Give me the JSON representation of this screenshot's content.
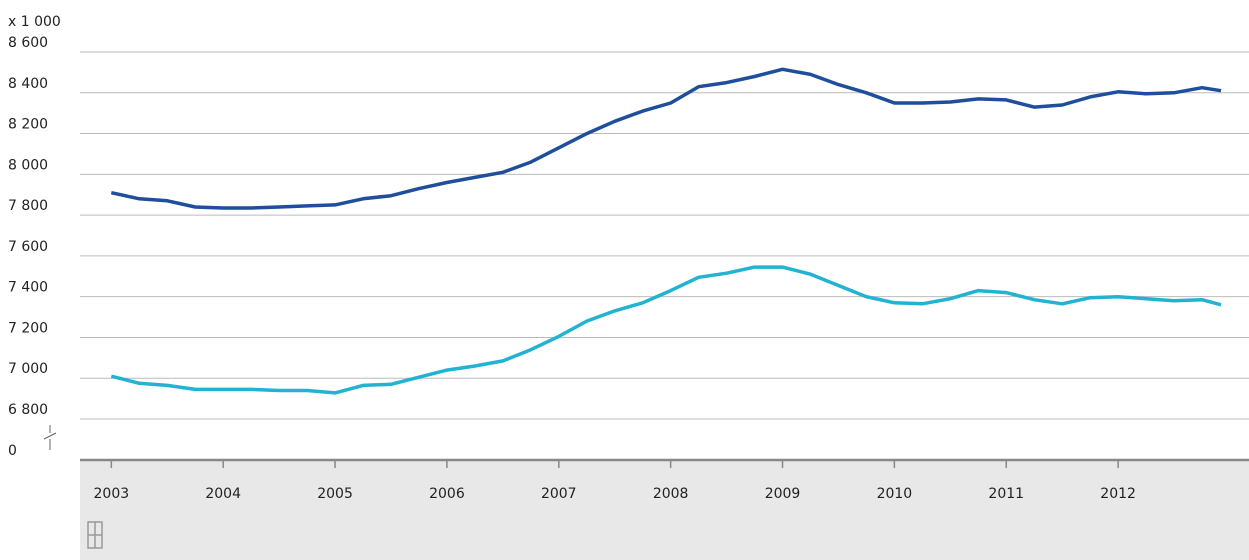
{
  "chart_data": {
    "type": "line",
    "y_label": "x 1 000",
    "x": [
      2003,
      2003.25,
      2003.5,
      2003.75,
      2004,
      2004.25,
      2004.5,
      2004.75,
      2005,
      2005.25,
      2005.5,
      2005.75,
      2006,
      2006.25,
      2006.5,
      2006.75,
      2007,
      2007.25,
      2007.5,
      2007.75,
      2008,
      2008.25,
      2008.5,
      2008.75,
      2009,
      2009.25,
      2009.5,
      2009.75,
      2010,
      2010.25,
      2010.5,
      2010.75,
      2011,
      2011.25,
      2011.5,
      2011.75,
      2012,
      2012.25,
      2012.5,
      2012.75,
      2012.92
    ],
    "series": [
      {
        "color": "#1f4e9c",
        "values": [
          7910,
          7880,
          7870,
          7840,
          7835,
          7835,
          7840,
          7845,
          7850,
          7880,
          7895,
          7930,
          7960,
          7985,
          8010,
          8060,
          8130,
          8200,
          8260,
          8310,
          8350,
          8430,
          8450,
          8480,
          8515,
          8490,
          8440,
          8400,
          8350,
          8350,
          8355,
          8370,
          8365,
          8330,
          8340,
          8380,
          8405,
          8395,
          8400,
          8425,
          8410
        ]
      },
      {
        "color": "#22b2d2",
        "values": [
          7010,
          6975,
          6965,
          6945,
          6945,
          6945,
          6940,
          6940,
          6928,
          6965,
          6970,
          7005,
          7040,
          7060,
          7085,
          7140,
          7205,
          7280,
          7330,
          7370,
          7430,
          7495,
          7515,
          7545,
          7545,
          7510,
          7455,
          7400,
          7370,
          7365,
          7390,
          7430,
          7420,
          7385,
          7365,
          7395,
          7400,
          7390,
          7380,
          7385,
          7360
        ]
      }
    ],
    "xlim": [
      2002.72,
      2013.17
    ],
    "xticks": [
      2003,
      2004,
      2005,
      2006,
      2007,
      2008,
      2009,
      2010,
      2011,
      2012
    ],
    "ylim": [
      6800,
      8600
    ],
    "yticks": [
      0,
      {
        "value": 6800,
        "label": "6 800"
      },
      {
        "value": 7000,
        "label": "7 000"
      },
      {
        "value": 7200,
        "label": "7 200"
      },
      {
        "value": 7400,
        "label": "7 400"
      },
      {
        "value": 7600,
        "label": "7 600"
      },
      {
        "value": 7800,
        "label": "7 800"
      },
      {
        "value": 8000,
        "label": "8 000"
      },
      {
        "value": 8200,
        "label": "8 200"
      },
      {
        "value": 8400,
        "label": "8 400"
      },
      {
        "value": 8600,
        "label": "8 600"
      }
    ],
    "axis_break": true,
    "grid": true
  }
}
